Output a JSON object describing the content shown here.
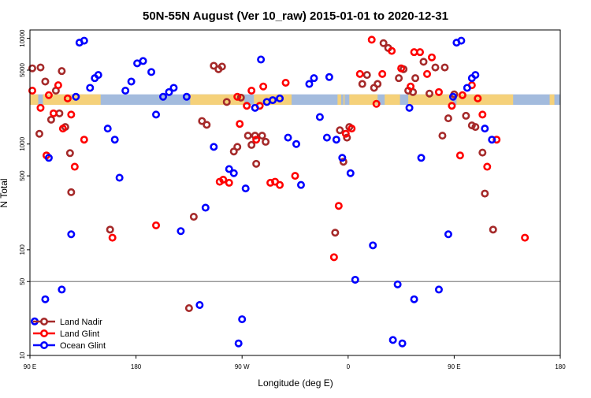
{
  "chart_data": {
    "type": "scatter",
    "title": "50N-55N August (Ver 10_raw)   2015-01-01 to 2020-12-31",
    "xlabel": "Longitude (deg E)",
    "ylabel": "N Total",
    "y_scale": "log",
    "xlim": [
      90,
      540
    ],
    "ylim": [
      10,
      12000
    ],
    "x_ticks": [
      {
        "v": 90,
        "label": "90 E"
      },
      {
        "v": 180,
        "label": "180"
      },
      {
        "v": 270,
        "label": "90 W"
      },
      {
        "v": 360,
        "label": "0"
      },
      {
        "v": 450,
        "label": "90 E"
      },
      {
        "v": 540,
        "label": "180"
      }
    ],
    "y_ticks": [
      {
        "v": 10,
        "label": "10"
      },
      {
        "v": 50,
        "label": "50"
      },
      {
        "v": 100,
        "label": "100"
      },
      {
        "v": 500,
        "label": "500"
      },
      {
        "v": 1000,
        "label": "1000"
      },
      {
        "v": 5000,
        "label": "5000"
      },
      {
        "v": 10000,
        "label": "10000"
      }
    ],
    "reference_line": 50,
    "land_band": {
      "y_range": [
        2350,
        2950
      ],
      "color": "#f5d17a",
      "ocean_color": "#a3bbdd",
      "land_segments": [
        [
          90,
          97
        ],
        [
          101,
          150
        ],
        [
          226,
          272
        ],
        [
          280,
          312
        ],
        [
          351,
          354
        ],
        [
          356,
          357
        ],
        [
          361,
          385
        ],
        [
          391,
          404
        ],
        [
          411,
          449
        ],
        [
          452,
          500
        ],
        [
          531,
          535
        ]
      ]
    },
    "legend": {
      "position": "bottom-left"
    },
    "series": [
      {
        "name": "Land Nadir",
        "color": "#a52a2a",
        "points": [
          [
            92,
            5200
          ],
          [
            98,
            1250
          ],
          [
            99,
            5300
          ],
          [
            103,
            3900
          ],
          [
            108,
            1700
          ],
          [
            112,
            3200
          ],
          [
            115,
            1950
          ],
          [
            117,
            4900
          ],
          [
            120,
            1450
          ],
          [
            124,
            820
          ],
          [
            125,
            350
          ],
          [
            158,
            155
          ],
          [
            225,
            28
          ],
          [
            229,
            205
          ],
          [
            236,
            1650
          ],
          [
            240,
            1520
          ],
          [
            246,
            5500
          ],
          [
            250,
            5100
          ],
          [
            253,
            5400
          ],
          [
            257,
            2500
          ],
          [
            263,
            850
          ],
          [
            266,
            940
          ],
          [
            269,
            2750
          ],
          [
            275,
            1200
          ],
          [
            278,
            980
          ],
          [
            281,
            1200
          ],
          [
            282,
            650
          ],
          [
            287,
            1200
          ],
          [
            290,
            1050
          ],
          [
            349,
            145
          ],
          [
            353,
            1350
          ],
          [
            356,
            680
          ],
          [
            359,
            1150
          ],
          [
            361,
            1450
          ],
          [
            372,
            3700
          ],
          [
            376,
            4500
          ],
          [
            382,
            3400
          ],
          [
            385,
            3700
          ],
          [
            390,
            9000
          ],
          [
            394,
            8100
          ],
          [
            403,
            4200
          ],
          [
            407,
            5100
          ],
          [
            411,
            3200
          ],
          [
            415,
            3100
          ],
          [
            417,
            4200
          ],
          [
            424,
            6000
          ],
          [
            429,
            3000
          ],
          [
            434,
            5300
          ],
          [
            440,
            1200
          ],
          [
            442,
            5300
          ],
          [
            445,
            1750
          ],
          [
            450,
            2950
          ],
          [
            460,
            1850
          ],
          [
            465,
            1500
          ],
          [
            468,
            1450
          ],
          [
            474,
            830
          ],
          [
            476,
            340
          ],
          [
            483,
            155
          ]
        ]
      },
      {
        "name": "Land Glint",
        "color": "#ff0000",
        "points": [
          [
            92,
            3200
          ],
          [
            99,
            2200
          ],
          [
            104,
            780
          ],
          [
            106,
            2900
          ],
          [
            110,
            1950
          ],
          [
            114,
            3600
          ],
          [
            118,
            1400
          ],
          [
            122,
            2700
          ],
          [
            125,
            1900
          ],
          [
            128,
            610
          ],
          [
            136,
            1100
          ],
          [
            160,
            130
          ],
          [
            197,
            170
          ],
          [
            251,
            440
          ],
          [
            254,
            460
          ],
          [
            259,
            430
          ],
          [
            266,
            2800
          ],
          [
            268,
            1550
          ],
          [
            274,
            2300
          ],
          [
            278,
            3200
          ],
          [
            282,
            1100
          ],
          [
            285,
            2300
          ],
          [
            288,
            3500
          ],
          [
            294,
            430
          ],
          [
            298,
            440
          ],
          [
            302,
            410
          ],
          [
            307,
            3800
          ],
          [
            315,
            500
          ],
          [
            348,
            85
          ],
          [
            352,
            260
          ],
          [
            358,
            1250
          ],
          [
            363,
            1400
          ],
          [
            370,
            4600
          ],
          [
            380,
            9700
          ],
          [
            384,
            2400
          ],
          [
            389,
            4600
          ],
          [
            397,
            7600
          ],
          [
            405,
            5200
          ],
          [
            413,
            3500
          ],
          [
            416,
            7400
          ],
          [
            421,
            7400
          ],
          [
            427,
            4600
          ],
          [
            431,
            6600
          ],
          [
            437,
            3100
          ],
          [
            448,
            2300
          ],
          [
            455,
            780
          ],
          [
            457,
            2900
          ],
          [
            465,
            3600
          ],
          [
            470,
            2700
          ],
          [
            474,
            1900
          ],
          [
            478,
            610
          ],
          [
            486,
            1100
          ],
          [
            510,
            130
          ]
        ]
      },
      {
        "name": "Ocean Glint",
        "color": "#0000ff",
        "points": [
          [
            94,
            21
          ],
          [
            103,
            34
          ],
          [
            106,
            740
          ],
          [
            117,
            42
          ],
          [
            125,
            140
          ],
          [
            129,
            2800
          ],
          [
            132,
            9100
          ],
          [
            136,
            9500
          ],
          [
            141,
            3400
          ],
          [
            145,
            4200
          ],
          [
            148,
            4500
          ],
          [
            156,
            1400
          ],
          [
            162,
            1100
          ],
          [
            166,
            480
          ],
          [
            171,
            3200
          ],
          [
            176,
            3900
          ],
          [
            181,
            5800
          ],
          [
            186,
            6100
          ],
          [
            193,
            4800
          ],
          [
            197,
            1900
          ],
          [
            203,
            2800
          ],
          [
            208,
            3100
          ],
          [
            212,
            3400
          ],
          [
            218,
            150
          ],
          [
            223,
            2800
          ],
          [
            234,
            30
          ],
          [
            239,
            250
          ],
          [
            246,
            940
          ],
          [
            259,
            580
          ],
          [
            263,
            530
          ],
          [
            267,
            13
          ],
          [
            270,
            22
          ],
          [
            273,
            380
          ],
          [
            281,
            2200
          ],
          [
            286,
            6300
          ],
          [
            291,
            2500
          ],
          [
            296,
            2600
          ],
          [
            302,
            2700
          ],
          [
            309,
            1150
          ],
          [
            316,
            1000
          ],
          [
            320,
            410
          ],
          [
            327,
            3700
          ],
          [
            331,
            4200
          ],
          [
            336,
            1800
          ],
          [
            342,
            1150
          ],
          [
            344,
            4300
          ],
          [
            350,
            1100
          ],
          [
            355,
            740
          ],
          [
            362,
            530
          ],
          [
            366,
            52
          ],
          [
            381,
            110
          ],
          [
            398,
            14
          ],
          [
            402,
            47
          ],
          [
            406,
            13
          ],
          [
            412,
            2200
          ],
          [
            416,
            34
          ],
          [
            422,
            740
          ],
          [
            437,
            42
          ],
          [
            445,
            140
          ],
          [
            449,
            2800
          ],
          [
            452,
            9100
          ],
          [
            456,
            9500
          ],
          [
            461,
            3400
          ],
          [
            465,
            4200
          ],
          [
            468,
            4500
          ],
          [
            476,
            1400
          ],
          [
            482,
            1100
          ]
        ]
      }
    ]
  }
}
